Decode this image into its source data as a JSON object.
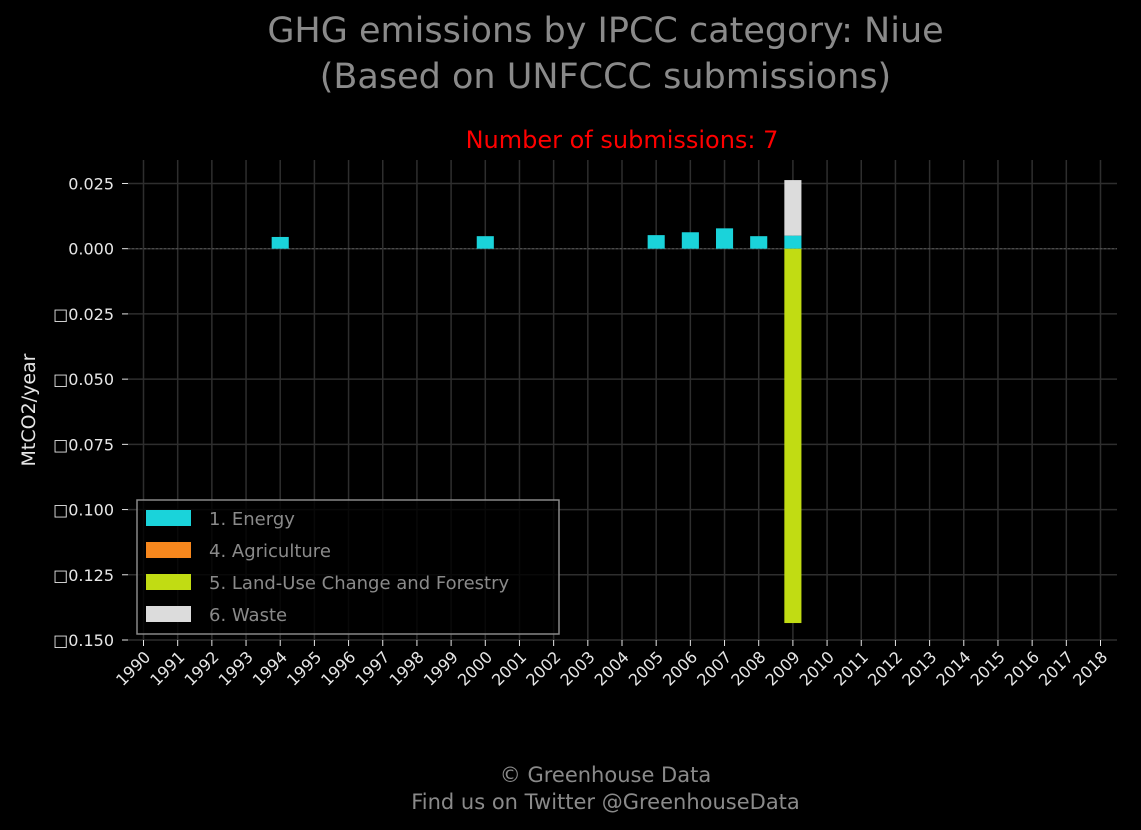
{
  "title_lines": [
    "GHG emissions by IPCC category: Niue",
    "(Based on UNFCCC submissions)"
  ],
  "footer_lines": [
    "© Greenhouse Data",
    "Find us on Twitter @GreenhouseData"
  ],
  "colors": {
    "background": "#000000",
    "grid": "#2e2e2e",
    "text": "#8a8a8a",
    "tick_text": "#e6e6e6",
    "subtitle": "#ff0000",
    "zero_line": "#555555"
  },
  "chart_data": {
    "type": "bar",
    "stacked": true,
    "title": "Number of submissions: 7",
    "xlabel": "",
    "ylabel": "MtCO2/year",
    "categories": [
      "1990",
      "1991",
      "1992",
      "1993",
      "1994",
      "1995",
      "1996",
      "1997",
      "1998",
      "1999",
      "2000",
      "2001",
      "2002",
      "2003",
      "2004",
      "2005",
      "2006",
      "2007",
      "2008",
      "2009",
      "2010",
      "2011",
      "2012",
      "2013",
      "2014",
      "2015",
      "2016",
      "2017",
      "2018"
    ],
    "ylim": [
      -0.15,
      0.034
    ],
    "yticks": [
      0.025,
      0.0,
      -0.025,
      -0.05,
      -0.075,
      -0.1,
      -0.125,
      -0.15
    ],
    "ytick_labels": [
      "0.025",
      "0.000",
      "□0.025",
      "□0.050",
      "□0.075",
      "□0.100",
      "□0.125",
      "□0.150"
    ],
    "grid": true,
    "legend_position": "lower-left",
    "series": [
      {
        "name": "1. Energy",
        "color": "#1ad3da",
        "values": [
          null,
          null,
          null,
          null,
          0.0045,
          null,
          null,
          null,
          null,
          null,
          0.0048,
          null,
          null,
          null,
          null,
          0.0052,
          0.0063,
          0.0078,
          0.0048,
          0.005,
          null,
          null,
          null,
          null,
          null,
          null,
          null,
          null,
          null
        ]
      },
      {
        "name": "4. Agriculture",
        "color": "#f7871d",
        "values": [
          null,
          null,
          null,
          null,
          null,
          null,
          null,
          null,
          null,
          null,
          null,
          null,
          null,
          null,
          null,
          null,
          null,
          null,
          null,
          0.0,
          null,
          null,
          null,
          null,
          null,
          null,
          null,
          null,
          null
        ]
      },
      {
        "name": "5. Land-Use Change and Forestry",
        "color": "#c1dc13",
        "values": [
          null,
          null,
          null,
          null,
          null,
          null,
          null,
          null,
          null,
          null,
          null,
          null,
          null,
          null,
          null,
          null,
          null,
          null,
          null,
          -0.1435,
          null,
          null,
          null,
          null,
          null,
          null,
          null,
          null,
          null
        ]
      },
      {
        "name": "6. Waste",
        "color": "#dcdcdc",
        "values": [
          null,
          null,
          null,
          null,
          null,
          null,
          null,
          null,
          null,
          null,
          null,
          null,
          null,
          null,
          null,
          null,
          null,
          null,
          null,
          0.0213,
          null,
          null,
          null,
          null,
          null,
          null,
          null,
          null,
          null
        ]
      }
    ]
  }
}
